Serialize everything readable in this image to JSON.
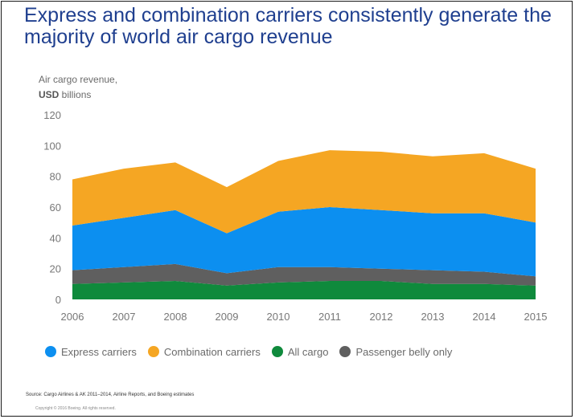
{
  "title": "Express and combination carriers consistently generate the majority of world air cargo revenue",
  "units_line1": "Air cargo revenue,",
  "units_line2_bold": "USD",
  "units_line2_rest": " billions",
  "source": "Source: Cargo Airlines & AK 2011–2014, Airline Reports, and Boeing estimates",
  "copyright": "Copyright © 2016 Boeing. All rights reserved.",
  "legend": [
    {
      "label": "Express carriers",
      "color": "#0c8ff0",
      "icon": "circle-icon"
    },
    {
      "label": "Combination carriers",
      "color": "#f5a623",
      "icon": "circle-icon"
    },
    {
      "label": "All cargo",
      "color": "#0f8a3c",
      "icon": "circle-icon"
    },
    {
      "label": "Passenger belly only",
      "color": "#5f5f5f",
      "icon": "circle-icon"
    }
  ],
  "chart_data": {
    "type": "area",
    "stacked": true,
    "x": [
      "2006",
      "2007",
      "2008",
      "2009",
      "2010",
      "2011",
      "2012",
      "2013",
      "2014",
      "2015"
    ],
    "ylim": [
      0,
      120
    ],
    "yticks": [
      "0",
      "20",
      "40",
      "60",
      "80",
      "100",
      "120"
    ],
    "grid": false,
    "legend_position": "bottom",
    "series": [
      {
        "name": "All cargo",
        "color": "#0f8a3c",
        "values": [
          10,
          11,
          12,
          9,
          11,
          12,
          12,
          10,
          10,
          9
        ]
      },
      {
        "name": "Passenger belly only",
        "color": "#5f5f5f",
        "values": [
          9,
          10,
          11,
          8,
          10,
          9,
          8,
          9,
          8,
          6
        ]
      },
      {
        "name": "Express carriers",
        "color": "#0c8ff0",
        "values": [
          29,
          32,
          35,
          26,
          36,
          39,
          38,
          37,
          38,
          35
        ]
      },
      {
        "name": "Combination carriers",
        "color": "#f5a623",
        "values": [
          30,
          32,
          31,
          30,
          33,
          37,
          38,
          37,
          39,
          35
        ]
      }
    ]
  }
}
